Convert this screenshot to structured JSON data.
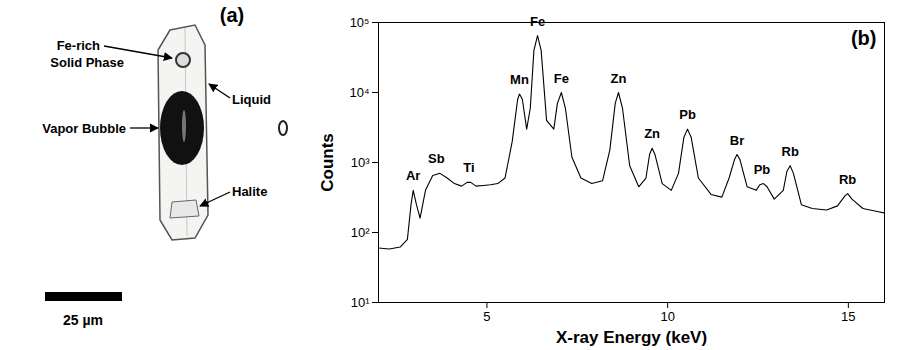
{
  "diagram": {
    "letter": "(a)",
    "labels": [
      "Fe-rich Solid Phase",
      "Liquid",
      "Vapor Bubble",
      "Halite"
    ],
    "scale_bar": "25 µm"
  },
  "chart_data": {
    "type": "line",
    "title": "(b)",
    "x_label": "X-ray Energy (keV)",
    "y_label": "Counts",
    "log": "y",
    "grid": false,
    "xlim": [
      2,
      16
    ],
    "xticks": [
      5,
      10,
      15
    ],
    "ylim": [
      10,
      100000
    ],
    "yticks": [
      {
        "value": 10,
        "label": "10¹"
      },
      {
        "value": 100,
        "label": "10²"
      },
      {
        "value": 1000,
        "label": "10³"
      },
      {
        "value": 10000,
        "label": "10⁴"
      },
      {
        "value": 100000,
        "label": "10⁵"
      }
    ],
    "x": [
      2.0,
      2.3,
      2.6,
      2.8,
      2.9,
      2.96,
      3.05,
      3.15,
      3.3,
      3.5,
      3.7,
      3.9,
      4.1,
      4.3,
      4.45,
      4.55,
      4.7,
      4.9,
      5.1,
      5.3,
      5.5,
      5.7,
      5.85,
      5.9,
      5.98,
      6.1,
      6.2,
      6.3,
      6.4,
      6.5,
      6.65,
      6.85,
      6.95,
      7.06,
      7.17,
      7.35,
      7.6,
      7.9,
      8.2,
      8.4,
      8.55,
      8.64,
      8.75,
      8.95,
      9.2,
      9.4,
      9.5,
      9.57,
      9.65,
      9.85,
      10.1,
      10.3,
      10.45,
      10.55,
      10.65,
      10.85,
      11.2,
      11.5,
      11.7,
      11.85,
      11.92,
      12.0,
      12.2,
      12.45,
      12.55,
      12.65,
      12.75,
      12.95,
      13.2,
      13.3,
      13.39,
      13.48,
      13.7,
      14.0,
      14.4,
      14.7,
      14.9,
      14.98,
      15.1,
      15.4,
      15.8,
      16.0
    ],
    "series": [
      {
        "name": "Counts",
        "color": "#000000",
        "values": [
          60,
          58,
          62,
          80,
          250,
          400,
          250,
          160,
          400,
          650,
          700,
          600,
          500,
          460,
          520,
          520,
          460,
          470,
          480,
          500,
          600,
          2000,
          8000,
          9500,
          8000,
          3000,
          6000,
          40000,
          65000,
          40000,
          4000,
          3000,
          7000,
          10000,
          6000,
          1200,
          600,
          500,
          550,
          1500,
          7000,
          10000,
          6000,
          900,
          450,
          600,
          1300,
          1600,
          1300,
          500,
          400,
          700,
          2300,
          3000,
          2300,
          600,
          350,
          320,
          600,
          1100,
          1300,
          1100,
          450,
          400,
          480,
          500,
          450,
          300,
          400,
          750,
          900,
          700,
          250,
          220,
          210,
          240,
          330,
          360,
          300,
          220,
          200,
          190
        ]
      }
    ],
    "annotations": [
      {
        "text": "Ar",
        "x": 2.96
      },
      {
        "text": "Sb",
        "x": 3.6
      },
      {
        "text": "Ti",
        "x": 4.5
      },
      {
        "text": "Mn",
        "x": 5.9
      },
      {
        "text": "Fe",
        "x": 6.4
      },
      {
        "text": "Fe",
        "x": 7.06
      },
      {
        "text": "Zn",
        "x": 8.64
      },
      {
        "text": "Zn",
        "x": 9.57
      },
      {
        "text": "Pb",
        "x": 10.55
      },
      {
        "text": "Br",
        "x": 11.92
      },
      {
        "text": "Pb",
        "x": 12.61
      },
      {
        "text": "Rb",
        "x": 13.39
      },
      {
        "text": "Rb",
        "x": 14.98
      }
    ]
  }
}
